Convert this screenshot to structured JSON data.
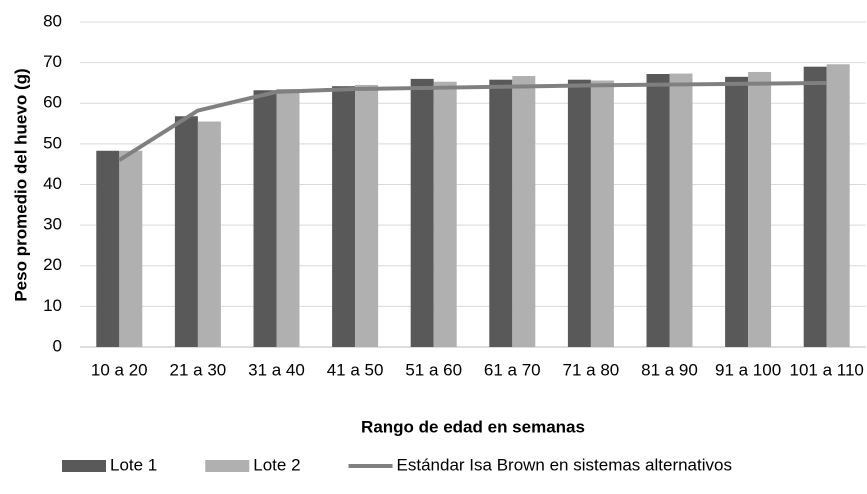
{
  "chart_data": {
    "type": "bar",
    "y_label": "Peso promedio del huevo (g)",
    "x_label": "Rango de edad en semanas",
    "categories": [
      "10 a 20",
      "21 a 30",
      "31 a 40",
      "41 a 50",
      "51 a 60",
      "61 a 70",
      "71 a 80",
      "81 a 90",
      "91 a 100",
      "101 a 110"
    ],
    "series": [
      {
        "name": "Lote 1",
        "type": "bar",
        "color": "#595959",
        "values": [
          48.3,
          56.8,
          63.2,
          64.2,
          66,
          65.8,
          65.8,
          67.2,
          66.5,
          69
        ]
      },
      {
        "name": "Lote 2",
        "type": "bar",
        "color": "#b0b0b0",
        "values": [
          48.3,
          55.5,
          63.5,
          64.5,
          65.3,
          66.7,
          65.6,
          67.3,
          67.7,
          69.6
        ]
      },
      {
        "name": "Estándar Isa Brown en sistemas alternativos",
        "type": "line",
        "color": "#808080",
        "values": [
          46,
          58.2,
          62.8,
          63.5,
          63.8,
          64.1,
          64.4,
          64.6,
          64.8,
          65
        ]
      }
    ],
    "ylim": [
      0,
      80
    ],
    "yticks": [
      0,
      10,
      20,
      30,
      40,
      50,
      60,
      70,
      80
    ],
    "grid": true,
    "legend": "bottom"
  }
}
